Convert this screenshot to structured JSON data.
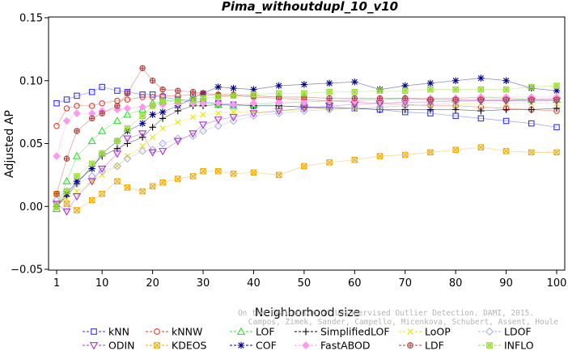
{
  "chart_data": {
    "type": "line",
    "title": "Pima_withoutdupl_10_v10",
    "xlabel": "Neighborhood size",
    "ylabel": "Adjusted AP",
    "xlim": [
      1,
      100
    ],
    "ylim": [
      -0.05,
      0.15
    ],
    "xticks": [
      "1",
      "10",
      "20",
      "30",
      "40",
      "50",
      "60",
      "70",
      "80",
      "90",
      "100"
    ],
    "yticks": [
      "−0.05",
      "0.00",
      "0.05",
      "0.10",
      "0.15"
    ],
    "grid": false,
    "legend_position": "bottom",
    "x": [
      1,
      3,
      5,
      8,
      10,
      13,
      15,
      18,
      20,
      22,
      25,
      28,
      30,
      33,
      36,
      40,
      45,
      50,
      55,
      60,
      65,
      70,
      75,
      80,
      85,
      90,
      95,
      100
    ],
    "series": [
      {
        "name": "kNN",
        "color": "#3333ff",
        "marker": "square",
        "values": [
          0.082,
          0.085,
          0.088,
          0.091,
          0.095,
          0.092,
          0.091,
          0.089,
          0.089,
          0.087,
          0.085,
          0.084,
          0.083,
          0.082,
          0.081,
          0.08,
          0.08,
          0.079,
          0.079,
          0.078,
          0.077,
          0.075,
          0.074,
          0.072,
          0.07,
          0.068,
          0.066,
          0.063
        ]
      },
      {
        "name": "kNNW",
        "color": "#e23a2a",
        "marker": "circle",
        "values": [
          0.064,
          0.078,
          0.08,
          0.08,
          0.082,
          0.084,
          0.085,
          0.087,
          0.087,
          0.088,
          0.088,
          0.089,
          0.089,
          0.088,
          0.088,
          0.087,
          0.086,
          0.085,
          0.084,
          0.083,
          0.082,
          0.081,
          0.08,
          0.08,
          0.079,
          0.078,
          0.077,
          0.076
        ]
      },
      {
        "name": "LOF",
        "color": "#33dd33",
        "marker": "triangle",
        "values": [
          -0.002,
          0.02,
          0.04,
          0.052,
          0.06,
          0.068,
          0.073,
          0.077,
          0.082,
          0.084,
          0.084,
          0.083,
          0.082,
          0.081,
          0.08,
          0.081,
          0.082,
          0.083,
          0.084,
          0.085,
          0.085,
          0.086,
          0.086,
          0.086,
          0.087,
          0.086,
          0.085,
          0.085
        ]
      },
      {
        "name": "SimplifiedLOF",
        "color": "#000000",
        "marker": "plus",
        "values": [
          0.0,
          0.008,
          0.018,
          0.032,
          0.04,
          0.046,
          0.05,
          0.055,
          0.063,
          0.07,
          0.076,
          0.08,
          0.08,
          0.081,
          0.081,
          0.08,
          0.08,
          0.079,
          0.078,
          0.078,
          0.077,
          0.077,
          0.077,
          0.077,
          0.076,
          0.077,
          0.077,
          0.078
        ]
      },
      {
        "name": "LoOP",
        "color": "#e6e600",
        "marker": "cross",
        "values": [
          0.003,
          0.006,
          0.012,
          0.02,
          0.025,
          0.032,
          0.04,
          0.048,
          0.055,
          0.062,
          0.067,
          0.071,
          0.073,
          0.074,
          0.075,
          0.075,
          0.076,
          0.077,
          0.078,
          0.078,
          0.079,
          0.08,
          0.081,
          0.081,
          0.082,
          0.082,
          0.082,
          0.082
        ]
      },
      {
        "name": "LDOF",
        "color": "#b0b0ee",
        "marker": "diamond",
        "values": [
          0.005,
          0.012,
          0.018,
          0.024,
          0.028,
          0.032,
          0.038,
          0.044,
          0.045,
          0.05,
          0.054,
          0.056,
          0.06,
          0.064,
          0.068,
          0.072,
          0.074,
          0.076,
          0.077,
          0.078,
          0.079,
          0.08,
          0.081,
          0.083,
          0.084,
          0.084,
          0.085,
          0.086
        ]
      },
      {
        "name": "ODIN",
        "color": "#aa33cc",
        "marker": "triangle-down",
        "values": [
          0.002,
          -0.004,
          0.008,
          0.02,
          0.03,
          0.042,
          0.054,
          0.058,
          0.043,
          0.044,
          0.052,
          0.058,
          0.065,
          0.069,
          0.071,
          0.074,
          0.076,
          0.078,
          0.08,
          0.081,
          0.082,
          0.083,
          0.083,
          0.084,
          0.084,
          0.084,
          0.084,
          0.084
        ]
      },
      {
        "name": "KDEOS",
        "color": "#f5a800",
        "marker": "square-x",
        "values": [
          0.01,
          0.002,
          -0.003,
          0.005,
          0.01,
          0.02,
          0.015,
          0.012,
          0.016,
          0.019,
          0.022,
          0.024,
          0.028,
          0.028,
          0.026,
          0.027,
          0.025,
          0.032,
          0.035,
          0.037,
          0.04,
          0.041,
          0.043,
          0.045,
          0.047,
          0.044,
          0.043,
          0.043
        ]
      },
      {
        "name": "COF",
        "color": "#000088",
        "marker": "star",
        "values": [
          0.0,
          0.01,
          0.02,
          0.03,
          0.042,
          0.052,
          0.06,
          0.066,
          0.073,
          0.075,
          0.08,
          0.086,
          0.09,
          0.095,
          0.094,
          0.093,
          0.096,
          0.097,
          0.098,
          0.099,
          0.093,
          0.096,
          0.098,
          0.1,
          0.102,
          0.1,
          0.094,
          0.092
        ]
      },
      {
        "name": "FastABOD",
        "color": "#ff99ee",
        "marker": "diamond-filled",
        "values": [
          0.04,
          0.068,
          0.074,
          0.074,
          0.076,
          0.077,
          0.078,
          0.079,
          0.08,
          0.081,
          0.082,
          0.082,
          0.082,
          0.082,
          0.081,
          0.082,
          0.083,
          0.083,
          0.084,
          0.084,
          0.085,
          0.085,
          0.086,
          0.086,
          0.087,
          0.087,
          0.087,
          0.087
        ]
      },
      {
        "name": "LDF",
        "color": "#b03a3a",
        "marker": "circle-plus",
        "values": [
          0.01,
          0.038,
          0.06,
          0.07,
          0.074,
          0.08,
          0.09,
          0.11,
          0.1,
          0.093,
          0.092,
          0.091,
          0.09,
          0.089,
          0.089,
          0.088,
          0.087,
          0.087,
          0.086,
          0.086,
          0.086,
          0.086,
          0.085,
          0.085,
          0.085,
          0.085,
          0.085,
          0.085
        ]
      },
      {
        "name": "INFLO",
        "color": "#99dd33",
        "marker": "square-star",
        "values": [
          0.0,
          0.012,
          0.024,
          0.034,
          0.042,
          0.052,
          0.062,
          0.072,
          0.08,
          0.083,
          0.084,
          0.085,
          0.086,
          0.087,
          0.088,
          0.089,
          0.09,
          0.09,
          0.091,
          0.091,
          0.092,
          0.092,
          0.093,
          0.093,
          0.093,
          0.093,
          0.095,
          0.096
        ]
      }
    ],
    "watermark_lines": [
      "On the Evaluation of Unsupervised Outlier Detection. DAMI, 2015.",
      "Campos, Zimek, Sander, Campello, Micenkova, Schubert, Assent, Houle"
    ]
  }
}
